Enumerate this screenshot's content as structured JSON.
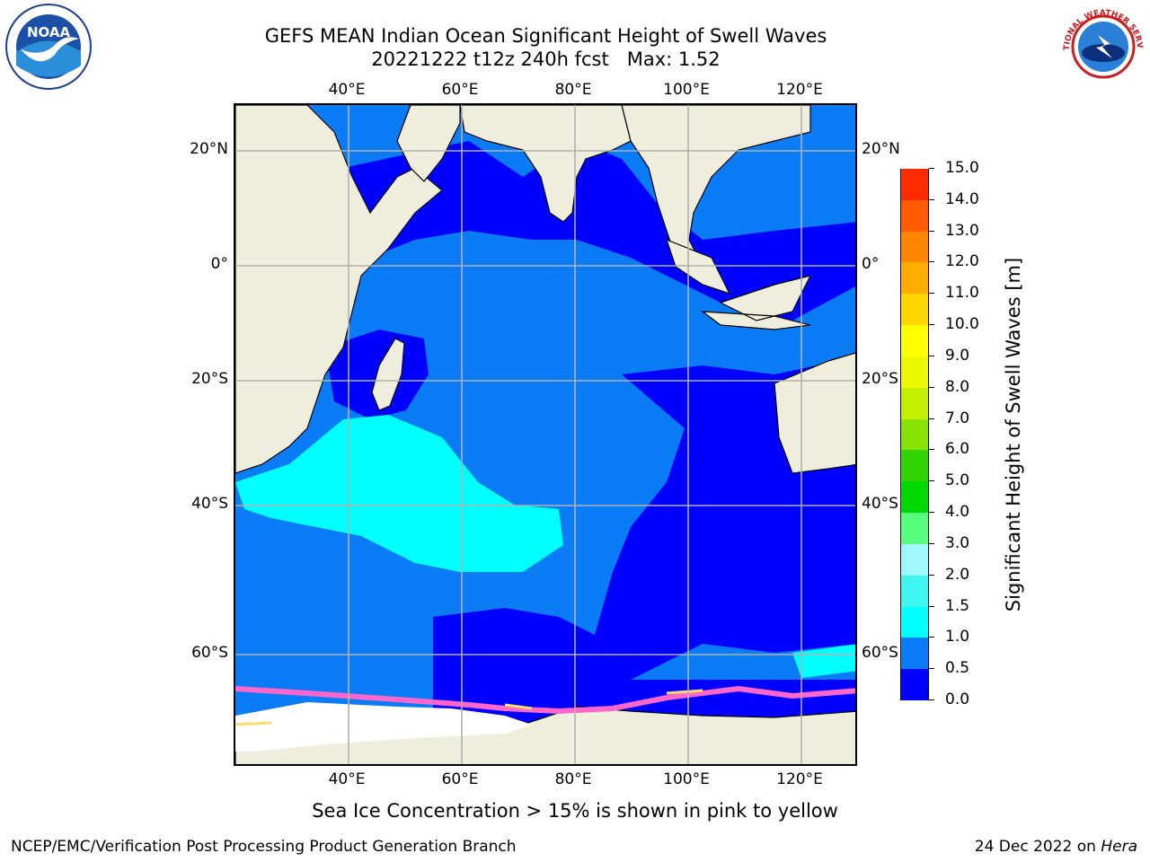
{
  "title": {
    "line1": "GEFS MEAN Indian Ocean Significant Height of Swell Waves",
    "line2": "20221222 t12z 240h fcst   Max: 1.52"
  },
  "axes": {
    "lon_ticks": [
      "40°E",
      "60°E",
      "80°E",
      "100°E",
      "120°E"
    ],
    "lat_ticks_left": [
      "20°N",
      "0°",
      "20°S",
      "40°S",
      "60°S"
    ],
    "lat_ticks_right": [
      "20°N",
      "0°",
      "20°S",
      "40°S",
      "60°S"
    ]
  },
  "colorbar": {
    "label": "Significant Height of Swell Waves [m]",
    "ticks": [
      "0.0",
      "0.5",
      "1.0",
      "1.5",
      "2.0",
      "3.0",
      "4.0",
      "5.0",
      "6.0",
      "7.0",
      "8.0",
      "9.0",
      "10.0",
      "11.0",
      "12.0",
      "13.0",
      "14.0",
      "15.0"
    ],
    "colors": [
      "#0000ff",
      "#0a7df6",
      "#00ffff",
      "#3ff7f0",
      "#9ff9fa",
      "#57fd7e",
      "#00d900",
      "#33d500",
      "#86e400",
      "#c5f000",
      "#ecf800",
      "#ffff00",
      "#ffd600",
      "#ffac00",
      "#ff8500",
      "#ff5b00",
      "#ff2a00"
    ]
  },
  "footnote": "Sea Ice Concentration > 15% is shown in pink to yellow",
  "credits": {
    "left": "NCEP/EMC/Verification Post Processing Product Generation Branch",
    "right_prefix": "24 Dec 2022 on ",
    "right_host": "Hera"
  },
  "logos": {
    "noaa_text": "NOAA",
    "nws_text": "NATIONAL WEATHER SERVICE"
  },
  "colors": {
    "land": "#efeedd",
    "ocean_deep": "#0000ff",
    "ocean_mid": "#0a7df6",
    "ocean_high": "#00ffff",
    "grid": "#b0b0b0",
    "ice_pink": "#ff66cc",
    "ice_yellow": "#ffdd66"
  }
}
